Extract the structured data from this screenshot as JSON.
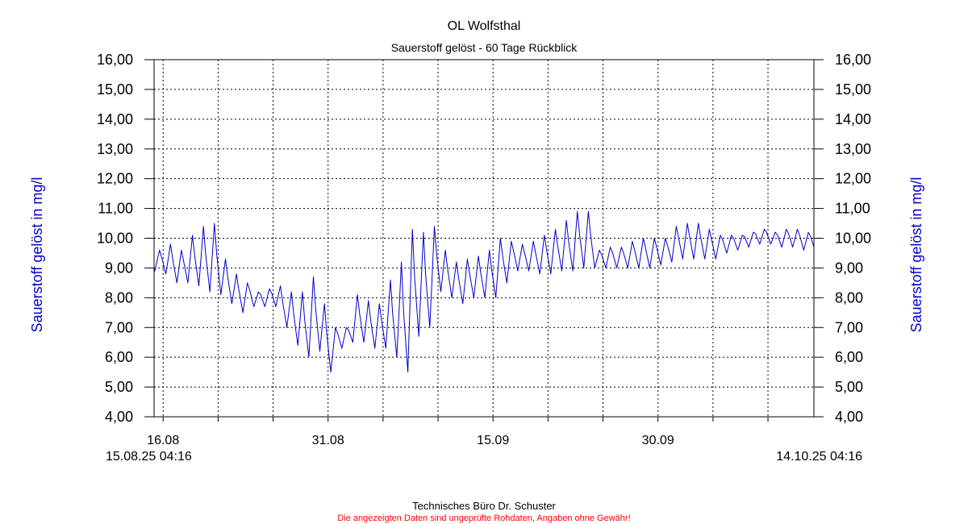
{
  "footer": {
    "credit": "Technisches Büro Dr. Schuster",
    "disclaimer": "Die angezeigten Daten sind ungeprüfte Rohdaten, Angaben ohne Gewähr!",
    "disclaimer_color": "#ff0000"
  },
  "chart_data": {
    "type": "line",
    "title": "OL Wolfsthal",
    "subtitle": "Sauerstoff gelöst - 60 Tage Rückblick",
    "ylabel": "Sauerstoff gelöst in mg/l",
    "ylabel_color": "#0000cc",
    "line_color": "#0000cc",
    "grid": true,
    "grid_style": "dotted",
    "ylim": [
      4,
      16
    ],
    "y_ticks": [
      "4,00",
      "5,00",
      "6,00",
      "7,00",
      "8,00",
      "9,00",
      "10,00",
      "11,00",
      "12,00",
      "13,00",
      "14,00",
      "15,00",
      "16,00"
    ],
    "x_start_label": "15.08.25 04:16",
    "x_end_label": "14.10.25 04:16",
    "xlim": [
      "2025-08-15 04:16",
      "2025-10-14 04:16"
    ],
    "x_tick_labels": [
      {
        "date": "2025-08-16",
        "label": "16.08"
      },
      {
        "date": "2025-08-31",
        "label": "31.08"
      },
      {
        "date": "2025-09-15",
        "label": "15.09"
      },
      {
        "date": "2025-09-30",
        "label": "30.09"
      }
    ],
    "gridline_dates": [
      "2025-08-16",
      "2025-08-21",
      "2025-08-26",
      "2025-08-31",
      "2025-09-05",
      "2025-09-10",
      "2025-09-15",
      "2025-09-20",
      "2025-09-25",
      "2025-09-30",
      "2025-10-05",
      "2025-10-10"
    ],
    "series": [
      {
        "x": [
          "2025-08-15",
          "2025-08-16",
          "2025-08-17",
          "2025-08-18",
          "2025-08-19",
          "2025-08-20",
          "2025-08-21",
          "2025-08-22",
          "2025-08-23",
          "2025-08-24",
          "2025-08-25",
          "2025-08-26",
          "2025-08-27",
          "2025-08-28",
          "2025-08-29",
          "2025-08-30",
          "2025-08-31",
          "2025-09-01",
          "2025-09-02",
          "2025-09-03",
          "2025-09-04",
          "2025-09-05",
          "2025-09-06",
          "2025-09-07",
          "2025-09-08",
          "2025-09-09",
          "2025-09-10",
          "2025-09-11",
          "2025-09-12",
          "2025-09-13",
          "2025-09-14",
          "2025-09-15",
          "2025-09-16",
          "2025-09-17",
          "2025-09-18",
          "2025-09-19",
          "2025-09-20",
          "2025-09-21",
          "2025-09-22",
          "2025-09-23",
          "2025-09-24",
          "2025-09-25",
          "2025-09-26",
          "2025-09-27",
          "2025-09-28",
          "2025-09-29",
          "2025-09-30",
          "2025-10-01",
          "2025-10-02",
          "2025-10-03",
          "2025-10-04",
          "2025-10-05",
          "2025-10-06",
          "2025-10-07",
          "2025-10-08",
          "2025-10-09",
          "2025-10-10",
          "2025-10-11",
          "2025-10-12",
          "2025-10-13",
          "2025-10-14"
        ],
        "min": [
          8.9,
          8.8,
          8.5,
          8.5,
          8.4,
          8.2,
          8.1,
          7.8,
          7.5,
          7.7,
          7.7,
          7.7,
          7.0,
          6.4,
          6.0,
          6.2,
          5.5,
          6.3,
          6.5,
          6.5,
          6.3,
          6.3,
          6.0,
          5.5,
          6.7,
          7.0,
          8.2,
          8.0,
          7.8,
          8.0,
          8.0,
          8.0,
          8.5,
          8.9,
          8.9,
          8.8,
          8.8,
          8.9,
          8.9,
          9.0,
          9.0,
          9.0,
          9.0,
          9.0,
          9.0,
          9.0,
          9.1,
          9.2,
          9.3,
          9.3,
          9.3,
          9.3,
          9.5,
          9.6,
          9.7,
          9.8,
          9.8,
          9.7,
          9.7,
          9.6,
          9.6
        ],
        "max": [
          9.6,
          9.8,
          9.6,
          10.1,
          10.4,
          10.5,
          9.3,
          8.8,
          8.5,
          8.2,
          8.3,
          8.4,
          8.2,
          8.2,
          8.7,
          7.8,
          7.0,
          7.0,
          8.1,
          7.9,
          7.8,
          8.6,
          9.2,
          10.3,
          10.2,
          10.4,
          9.6,
          9.2,
          9.3,
          9.4,
          9.6,
          10.0,
          9.9,
          9.8,
          9.9,
          10.1,
          10.3,
          10.6,
          10.9,
          10.9,
          9.6,
          9.7,
          9.7,
          9.9,
          10.0,
          10.0,
          10.0,
          10.4,
          10.5,
          10.5,
          10.3,
          10.1,
          10.1,
          10.1,
          10.2,
          10.3,
          10.2,
          10.3,
          10.3,
          10.2,
          9.8
        ]
      }
    ]
  }
}
